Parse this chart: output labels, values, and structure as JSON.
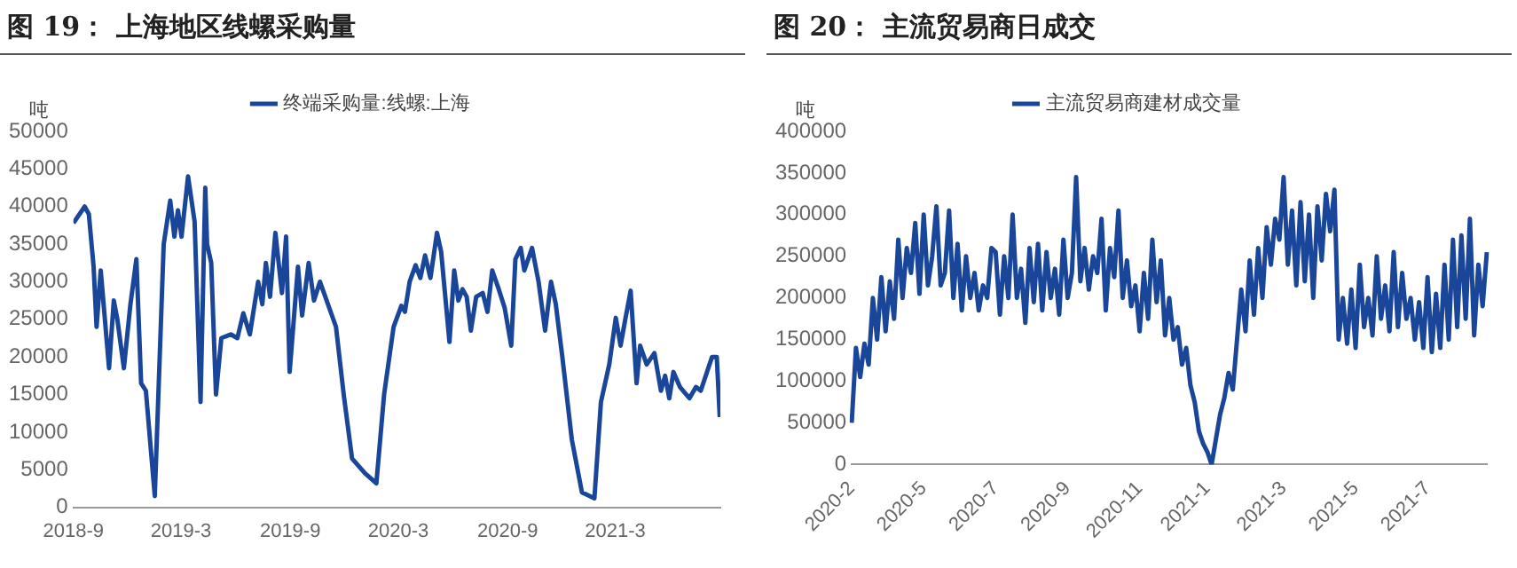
{
  "chart_data": [
    {
      "type": "line",
      "title": "图 19： 上海地区线螺采购量",
      "ylabel": "吨",
      "legend": "top",
      "grid": false,
      "marker": "none",
      "line_style": "solid",
      "x": [
        "2018-09-01",
        "2018-09-20",
        "2018-09-27",
        "2018-10-05",
        "2018-10-10",
        "2018-10-17",
        "2018-10-24",
        "2018-10-31",
        "2018-11-08",
        "2018-11-14",
        "2018-11-25",
        "2018-12-06",
        "2018-12-16",
        "2018-12-24",
        "2019-01-01",
        "2019-01-16",
        "2019-01-31",
        "2019-02-11",
        "2019-02-18",
        "2019-02-24",
        "2019-03-02",
        "2019-03-13",
        "2019-03-24",
        "2019-04-03",
        "2019-04-11",
        "2019-04-14",
        "2019-04-21",
        "2019-04-29",
        "2019-05-08",
        "2019-05-24",
        "2019-06-04",
        "2019-06-14",
        "2019-06-25",
        "2019-07-09",
        "2019-07-16",
        "2019-07-22",
        "2019-07-29",
        "2019-08-07",
        "2019-08-18",
        "2019-08-25",
        "2019-08-31",
        "2019-09-14",
        "2019-09-21",
        "2019-10-02",
        "2019-10-11",
        "2019-10-21",
        "2019-11-17",
        "2019-11-30",
        "2019-12-14",
        "2020-01-05",
        "2020-01-24",
        "2020-02-06",
        "2020-02-22",
        "2020-03-06",
        "2020-03-12",
        "2020-03-20",
        "2020-03-30",
        "2020-04-07",
        "2020-04-15",
        "2020-04-24",
        "2020-05-05",
        "2020-05-12",
        "2020-05-26",
        "2020-06-03",
        "2020-06-10",
        "2020-06-17",
        "2020-06-24",
        "2020-07-01",
        "2020-07-10",
        "2020-07-21",
        "2020-07-29",
        "2020-08-06",
        "2020-08-17",
        "2020-08-27",
        "2020-09-07",
        "2020-09-14",
        "2020-09-23",
        "2020-09-29",
        "2020-10-12",
        "2020-10-23",
        "2020-11-03",
        "2020-11-13",
        "2020-11-21",
        "2020-12-02",
        "2020-12-18",
        "2021-01-04",
        "2021-01-25",
        "2021-02-05",
        "2021-02-19",
        "2021-03-02",
        "2021-03-10",
        "2021-03-18",
        "2021-03-27",
        "2021-04-06",
        "2021-04-12",
        "2021-04-23",
        "2021-05-06",
        "2021-05-17",
        "2021-05-24",
        "2021-05-31",
        "2021-06-07",
        "2021-06-18",
        "2021-07-04",
        "2021-07-15",
        "2021-07-23",
        "2021-08-11",
        "2021-08-19",
        "2021-08-24"
      ],
      "series": [
        {
          "name": "终端采购量:线螺:上海",
          "color": "#1a4699",
          "values": [
            37800,
            40000,
            39000,
            32000,
            24000,
            31500,
            25000,
            18500,
            27500,
            25000,
            18500,
            27000,
            33000,
            16500,
            15500,
            1500,
            35000,
            40800,
            36000,
            39500,
            36000,
            44000,
            38000,
            14000,
            42500,
            35000,
            32500,
            15000,
            22500,
            23000,
            22500,
            25800,
            23000,
            30000,
            27000,
            32500,
            28000,
            36500,
            28500,
            36000,
            18000,
            32000,
            25500,
            32500,
            27500,
            30000,
            24000,
            15000,
            6500,
            4500,
            3200,
            15000,
            24000,
            26800,
            26000,
            30000,
            32200,
            30500,
            33500,
            30500,
            36500,
            34000,
            22000,
            31500,
            27500,
            29000,
            28000,
            23500,
            28000,
            28500,
            26000,
            31500,
            29000,
            26500,
            21500,
            33000,
            34500,
            31500,
            34500,
            30000,
            23500,
            30000,
            27000,
            20000,
            9000,
            2000,
            1200,
            14000,
            19000,
            25200,
            21500,
            25000,
            28800,
            16500,
            21500,
            19000,
            20500,
            15500,
            17500,
            14500,
            18000,
            16000,
            14500,
            16000,
            15500,
            20000,
            20000,
            12000
          ]
        }
      ],
      "xlim": [
        "2018-09-01",
        "2021-08-25"
      ],
      "xticks": [
        {
          "value": "2018-09-01",
          "label": "2018-9"
        },
        {
          "value": "2019-03-01",
          "label": "2019-3"
        },
        {
          "value": "2019-09-01",
          "label": "2019-9"
        },
        {
          "value": "2020-03-01",
          "label": "2020-3"
        },
        {
          "value": "2020-09-01",
          "label": "2020-9"
        },
        {
          "value": "2021-03-01",
          "label": "2021-3"
        }
      ],
      "ylim": [
        0,
        50000
      ],
      "yticks": [
        0,
        5000,
        10000,
        15000,
        20000,
        25000,
        30000,
        35000,
        40000,
        45000,
        50000
      ]
    },
    {
      "type": "line",
      "title": "图 20： 主流贸易商日成交",
      "ylabel": "吨",
      "legend": "top",
      "grid": false,
      "marker": "none",
      "line_style": "solid",
      "categories": [
        "2020-2",
        null,
        null,
        null,
        null,
        null,
        null,
        null,
        null,
        null,
        null,
        null,
        null,
        null,
        null,
        null,
        null,
        "2020-5",
        null,
        null,
        null,
        null,
        null,
        null,
        null,
        null,
        null,
        null,
        null,
        null,
        null,
        null,
        null,
        null,
        "2020-7",
        null,
        null,
        null,
        null,
        null,
        null,
        null,
        null,
        null,
        null,
        null,
        null,
        null,
        null,
        null,
        null,
        "2020-9",
        null,
        null,
        null,
        null,
        null,
        null,
        null,
        null,
        null,
        null,
        null,
        null,
        null,
        null,
        null,
        null,
        "2020-11",
        null,
        null,
        null,
        null,
        null,
        null,
        null,
        null,
        null,
        null,
        null,
        null,
        null,
        null,
        null,
        "2021-1",
        null,
        null,
        null,
        null,
        null,
        null,
        null,
        null,
        null,
        null,
        null,
        null,
        null,
        null,
        null,
        null,
        null,
        "2021-3",
        null,
        null,
        null,
        null,
        null,
        null,
        null,
        null,
        null,
        null,
        null,
        null,
        null,
        null,
        null,
        null,
        "2021-5",
        null,
        null,
        null,
        null,
        null,
        null,
        null,
        null,
        null,
        null,
        null,
        null,
        null,
        null,
        null,
        null,
        "2021-7",
        null,
        null,
        null,
        null,
        null,
        null,
        null,
        null,
        null,
        null,
        null,
        null,
        null,
        null
      ],
      "series": [
        {
          "name": "主流贸易商建材成交量",
          "color": "#1a4699",
          "values": [
            50000,
            140000,
            105000,
            145000,
            120000,
            200000,
            150000,
            225000,
            160000,
            220000,
            175000,
            270000,
            200000,
            260000,
            230000,
            290000,
            205000,
            300000,
            215000,
            250000,
            310000,
            215000,
            230000,
            305000,
            200000,
            265000,
            185000,
            250000,
            200000,
            230000,
            185000,
            215000,
            200000,
            260000,
            255000,
            180000,
            250000,
            200000,
            300000,
            200000,
            235000,
            170000,
            260000,
            195000,
            265000,
            185000,
            255000,
            200000,
            235000,
            180000,
            270000,
            200000,
            230000,
            345000,
            220000,
            260000,
            210000,
            250000,
            230000,
            295000,
            185000,
            260000,
            225000,
            305000,
            200000,
            245000,
            190000,
            215000,
            160000,
            230000,
            175000,
            270000,
            195000,
            245000,
            155000,
            200000,
            150000,
            165000,
            120000,
            140000,
            95000,
            75000,
            40000,
            25000,
            15000,
            0,
            30000,
            60000,
            80000,
            110000,
            90000,
            150000,
            210000,
            160000,
            245000,
            180000,
            260000,
            200000,
            285000,
            240000,
            295000,
            270000,
            345000,
            240000,
            305000,
            215000,
            315000,
            220000,
            300000,
            200000,
            310000,
            245000,
            325000,
            280000,
            330000,
            150000,
            200000,
            145000,
            210000,
            140000,
            240000,
            165000,
            200000,
            155000,
            250000,
            175000,
            215000,
            160000,
            255000,
            165000,
            230000,
            175000,
            200000,
            150000,
            195000,
            140000,
            225000,
            135000,
            205000,
            140000,
            240000,
            150000,
            270000,
            165000,
            275000,
            175000,
            295000,
            155000,
            240000,
            190000,
            255000
          ]
        }
      ],
      "ylim": [
        0,
        400000
      ],
      "yticks": [
        0,
        50000,
        100000,
        150000,
        200000,
        250000,
        300000,
        350000,
        400000
      ]
    }
  ]
}
